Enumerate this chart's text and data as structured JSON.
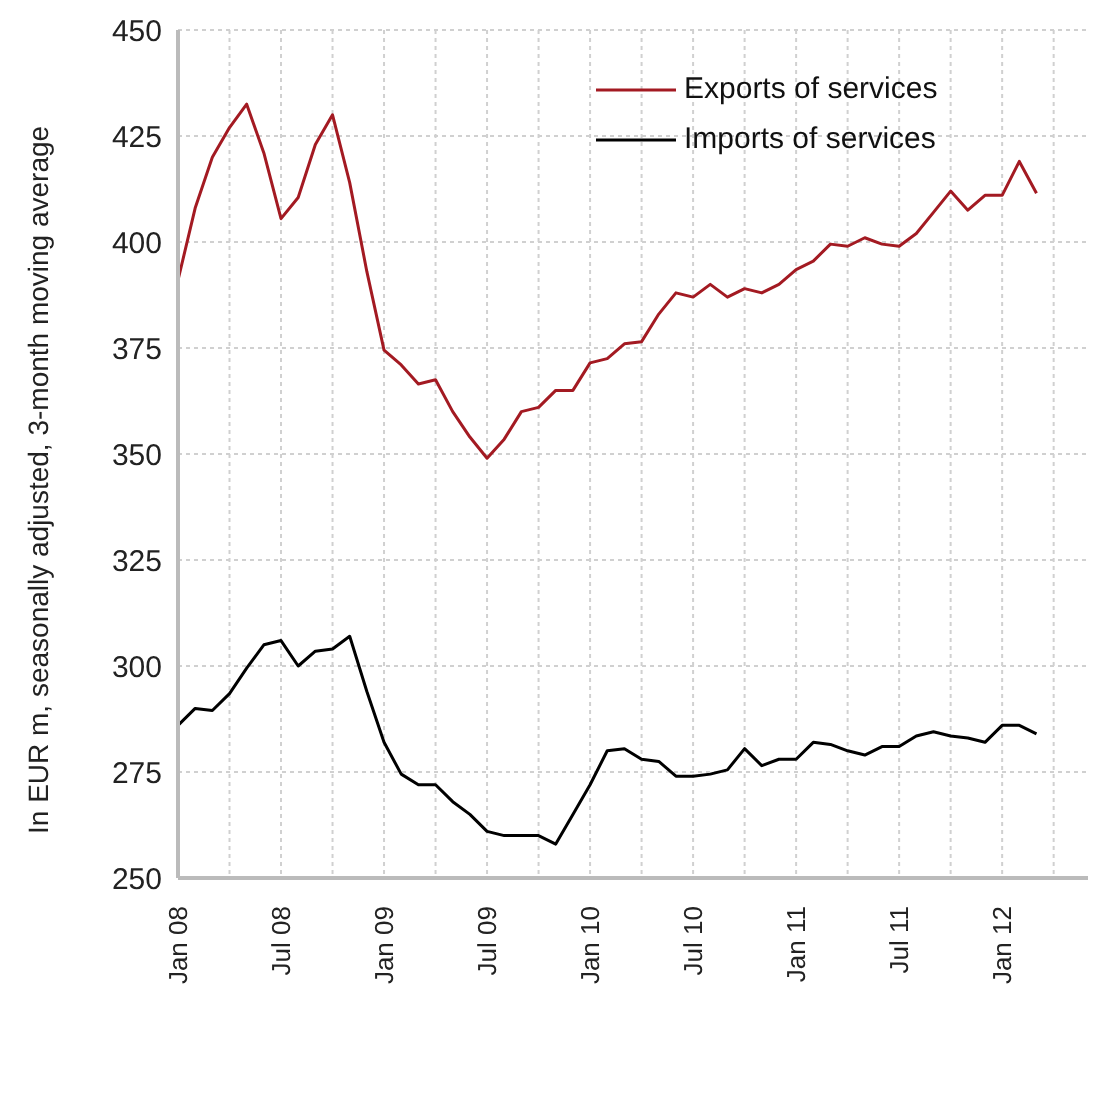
{
  "chart_data": {
    "type": "line",
    "ylabel": "In EUR m, seasonally adjusted, 3-month moving average",
    "x": [
      "2008-01",
      "2008-02",
      "2008-03",
      "2008-04",
      "2008-05",
      "2008-06",
      "2008-07",
      "2008-08",
      "2008-09",
      "2008-10",
      "2008-11",
      "2008-12",
      "2009-01",
      "2009-02",
      "2009-03",
      "2009-04",
      "2009-05",
      "2009-06",
      "2009-07",
      "2009-08",
      "2009-09",
      "2009-10",
      "2009-11",
      "2009-12",
      "2010-01",
      "2010-02",
      "2010-03",
      "2010-04",
      "2010-05",
      "2010-06",
      "2010-07",
      "2010-08",
      "2010-09",
      "2010-10",
      "2010-11",
      "2010-12",
      "2011-01",
      "2011-02",
      "2011-03",
      "2011-04",
      "2011-05",
      "2011-06",
      "2011-07",
      "2011-08",
      "2011-09",
      "2011-10",
      "2011-11",
      "2011-12",
      "2012-01",
      "2012-02",
      "2012-03"
    ],
    "series": [
      {
        "name": "Exports of services",
        "color": "#a31a22",
        "values": [
          391,
          408,
          420,
          427,
          432.5,
          421,
          405.5,
          410.5,
          423,
          430,
          414,
          393,
          374.5,
          371,
          366.5,
          367.5,
          360,
          354,
          349,
          353.5,
          360,
          361,
          365,
          365,
          371.5,
          372.5,
          376,
          376.5,
          383,
          388,
          387,
          390,
          387,
          389,
          388,
          390,
          393.5,
          395.5,
          399.5,
          399,
          401,
          399.5,
          399,
          402,
          407,
          412,
          407.5,
          411,
          411,
          419,
          411.5
        ]
      },
      {
        "name": "Imports of services",
        "color": "#000000",
        "values": [
          286,
          290,
          289.5,
          293.5,
          299.5,
          305,
          306,
          300,
          303.5,
          304,
          307,
          294,
          282,
          274.5,
          272,
          272,
          268,
          265,
          261,
          260,
          260,
          260,
          258,
          265,
          272,
          280,
          280.5,
          278,
          277.5,
          274,
          274,
          274.5,
          275.5,
          280.5,
          276.5,
          278,
          278,
          282,
          281.5,
          280,
          279,
          281,
          281,
          283.5,
          284.5,
          283.5,
          283,
          282,
          286,
          286,
          284
        ]
      }
    ],
    "xlim": [
      "2008-01",
      "2012-06"
    ],
    "xticks": [
      {
        "value": "2008-01",
        "label": "Jan 08"
      },
      {
        "value": "2008-04",
        "label": null
      },
      {
        "value": "2008-07",
        "label": "Jul 08"
      },
      {
        "value": "2008-10",
        "label": null
      },
      {
        "value": "2009-01",
        "label": "Jan 09"
      },
      {
        "value": "2009-04",
        "label": null
      },
      {
        "value": "2009-07",
        "label": "Jul 09"
      },
      {
        "value": "2009-10",
        "label": null
      },
      {
        "value": "2010-01",
        "label": "Jan 10"
      },
      {
        "value": "2010-04",
        "label": null
      },
      {
        "value": "2010-07",
        "label": "Jul 10"
      },
      {
        "value": "2010-10",
        "label": null
      },
      {
        "value": "2011-01",
        "label": "Jan 11"
      },
      {
        "value": "2011-04",
        "label": null
      },
      {
        "value": "2011-07",
        "label": "Jul 11"
      },
      {
        "value": "2011-10",
        "label": null
      },
      {
        "value": "2012-01",
        "label": "Jan 12"
      },
      {
        "value": "2012-04",
        "label": null
      }
    ],
    "ylim": [
      250,
      450
    ],
    "yticks": [
      250,
      275,
      300,
      325,
      350,
      375,
      400,
      425,
      450
    ],
    "grid": true,
    "legend": "top right",
    "marker": "none",
    "line_style": "solid"
  }
}
